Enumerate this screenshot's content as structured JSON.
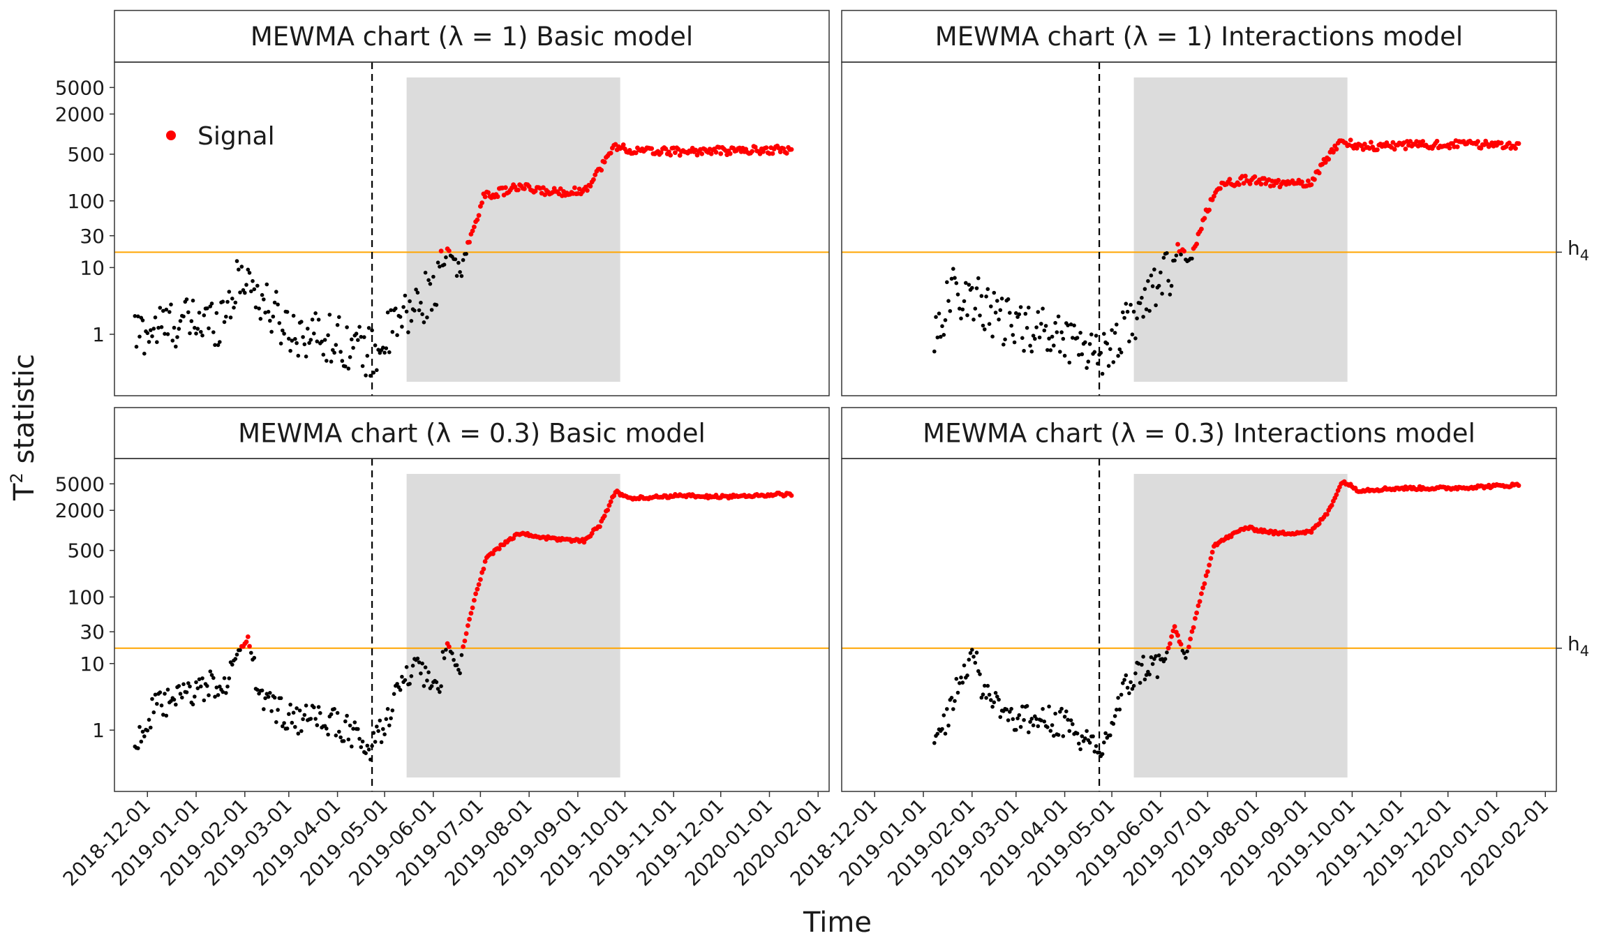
{
  "figure": {
    "ylabel_base": "T",
    "ylabel_sup": "2",
    "ylabel_rest": " statistic",
    "xlabel": "Time",
    "legend_label": "Signal",
    "threshold_label_base": "h",
    "threshold_label_sub": "4"
  },
  "chart_data": {
    "type": "scatter",
    "connected_line": true,
    "y_scale": "log",
    "y_ticks": [
      1,
      10,
      30,
      100,
      500,
      2000,
      5000
    ],
    "x_ticks": [
      "2018-12-01",
      "2019-01-01",
      "2019-02-01",
      "2019-03-01",
      "2019-04-01",
      "2019-05-01",
      "2019-06-01",
      "2019-07-01",
      "2019-08-01",
      "2019-09-01",
      "2019-10-01",
      "2019-11-01",
      "2019-12-01",
      "2020-01-01",
      "2020-02-01"
    ],
    "x_range": [
      "2018-11-10",
      "2020-02-08"
    ],
    "threshold_h4": 17,
    "vertical_dashed_line": "2019-04-23",
    "shaded_period": [
      "2019-05-15",
      "2019-09-28"
    ],
    "colors": {
      "signal": "#ff0000",
      "normal": "#000000",
      "threshold": "#ffa500",
      "shade": "#dcdcdc"
    },
    "legend": {
      "entries": [
        "Signal"
      ],
      "placement": "top-left inside first panel"
    },
    "panels": [
      {
        "title": "MEWMA chart (λ = 1) Basic model",
        "ylim": [
          0.12,
          12000
        ],
        "start": "2018-11-23",
        "end": "2020-01-15",
        "keypoints": [
          [
            "2018-11-23",
            1.0
          ],
          [
            "2018-12-20",
            1.5
          ],
          [
            "2019-01-15",
            1.6
          ],
          [
            "2019-01-25",
            4.5
          ],
          [
            "2019-02-01",
            8.5
          ],
          [
            "2019-02-12",
            3.0
          ],
          [
            "2019-03-01",
            1.2
          ],
          [
            "2019-04-01",
            0.85
          ],
          [
            "2019-04-24",
            0.5
          ],
          [
            "2019-05-08",
            1.3
          ],
          [
            "2019-05-20",
            2.5
          ],
          [
            "2019-06-05",
            6.0
          ],
          [
            "2019-06-10",
            18
          ],
          [
            "2019-06-18",
            9.0
          ],
          [
            "2019-06-25",
            30
          ],
          [
            "2019-07-03",
            115
          ],
          [
            "2019-07-25",
            160
          ],
          [
            "2019-08-15",
            135
          ],
          [
            "2019-09-05",
            140
          ],
          [
            "2019-09-15",
            300
          ],
          [
            "2019-09-25",
            680
          ],
          [
            "2019-10-05",
            560
          ],
          [
            "2019-11-01",
            550
          ],
          [
            "2019-12-01",
            560
          ],
          [
            "2020-01-15",
            590
          ]
        ]
      },
      {
        "title": "MEWMA chart (λ = 1) Interactions model",
        "ylim": [
          0.12,
          12000
        ],
        "start": "2019-01-08",
        "end": "2020-01-15",
        "keypoints": [
          [
            "2019-01-08",
            1.0
          ],
          [
            "2019-01-20",
            4.5
          ],
          [
            "2019-02-05",
            3.0
          ],
          [
            "2019-02-20",
            1.5
          ],
          [
            "2019-03-15",
            1.2
          ],
          [
            "2019-04-10",
            0.8
          ],
          [
            "2019-04-24",
            0.5
          ],
          [
            "2019-05-10",
            1.3
          ],
          [
            "2019-05-25",
            3.5
          ],
          [
            "2019-06-08",
            10
          ],
          [
            "2019-06-12",
            20
          ],
          [
            "2019-06-20",
            12
          ],
          [
            "2019-06-28",
            50
          ],
          [
            "2019-07-08",
            170
          ],
          [
            "2019-07-25",
            210
          ],
          [
            "2019-08-20",
            175
          ],
          [
            "2019-09-05",
            190
          ],
          [
            "2019-09-15",
            450
          ],
          [
            "2019-09-25",
            820
          ],
          [
            "2019-10-05",
            650
          ],
          [
            "2019-11-01",
            680
          ],
          [
            "2019-12-01",
            700
          ],
          [
            "2020-01-15",
            700
          ]
        ]
      },
      {
        "title": "MEWMA chart (λ = 0.3) Basic model",
        "ylim": [
          0.12,
          12000
        ],
        "start": "2018-11-23",
        "end": "2020-01-15",
        "keypoints": [
          [
            "2018-11-23",
            0.6
          ],
          [
            "2018-12-05",
            2.0
          ],
          [
            "2019-01-01",
            4.0
          ],
          [
            "2019-01-20",
            5.5
          ],
          [
            "2019-01-28",
            15
          ],
          [
            "2019-02-03",
            24
          ],
          [
            "2019-02-10",
            3.5
          ],
          [
            "2019-03-01",
            1.5
          ],
          [
            "2019-04-01",
            1.3
          ],
          [
            "2019-04-23",
            0.5
          ],
          [
            "2019-05-10",
            4.0
          ],
          [
            "2019-05-20",
            8.5
          ],
          [
            "2019-06-03",
            3.5
          ],
          [
            "2019-06-10",
            20
          ],
          [
            "2019-06-17",
            8.0
          ],
          [
            "2019-06-25",
            60
          ],
          [
            "2019-07-05",
            400
          ],
          [
            "2019-07-25",
            900
          ],
          [
            "2019-08-15",
            750
          ],
          [
            "2019-09-05",
            700
          ],
          [
            "2019-09-15",
            1200
          ],
          [
            "2019-09-25",
            3800
          ],
          [
            "2019-10-05",
            3000
          ],
          [
            "2019-11-01",
            3300
          ],
          [
            "2019-12-01",
            3200
          ],
          [
            "2020-01-15",
            3500
          ]
        ]
      },
      {
        "title": "MEWMA chart (λ = 0.3) Interactions model",
        "ylim": [
          0.12,
          12000
        ],
        "start": "2019-01-08",
        "end": "2020-01-15",
        "keypoints": [
          [
            "2019-01-08",
            0.5
          ],
          [
            "2019-01-20",
            3.0
          ],
          [
            "2019-02-01",
            16
          ],
          [
            "2019-02-08",
            4.0
          ],
          [
            "2019-03-01",
            1.5
          ],
          [
            "2019-04-01",
            1.3
          ],
          [
            "2019-04-23",
            0.4
          ],
          [
            "2019-05-10",
            4.5
          ],
          [
            "2019-05-20",
            8.5
          ],
          [
            "2019-06-03",
            10
          ],
          [
            "2019-06-10",
            35
          ],
          [
            "2019-06-17",
            12
          ],
          [
            "2019-06-25",
            70
          ],
          [
            "2019-07-05",
            600
          ],
          [
            "2019-07-25",
            1100
          ],
          [
            "2019-08-15",
            900
          ],
          [
            "2019-09-05",
            950
          ],
          [
            "2019-09-15",
            1800
          ],
          [
            "2019-09-25",
            5500
          ],
          [
            "2019-10-05",
            4000
          ],
          [
            "2019-11-01",
            4300
          ],
          [
            "2019-12-01",
            4300
          ],
          [
            "2020-01-15",
            4800
          ]
        ]
      }
    ]
  }
}
